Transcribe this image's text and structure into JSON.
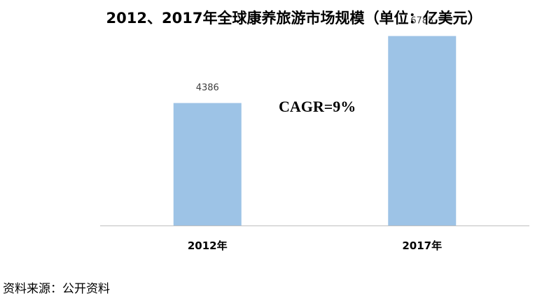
{
  "chart_data": {
    "type": "bar",
    "title": "2012、2017年全球康养旅游市场规模（单位：亿美元）",
    "categories": [
      "2012年",
      "2017年"
    ],
    "values": [
      4386,
      6785
    ],
    "data_labels": [
      "4386",
      "6785"
    ],
    "annotation": "CAGR=9%",
    "bar_color": "#9DC3E6",
    "axis_color": "#BFBFBF",
    "ylim": [
      0,
      7000
    ],
    "grid": false,
    "legend": "none"
  },
  "source_note": "资料来源：公开资料"
}
